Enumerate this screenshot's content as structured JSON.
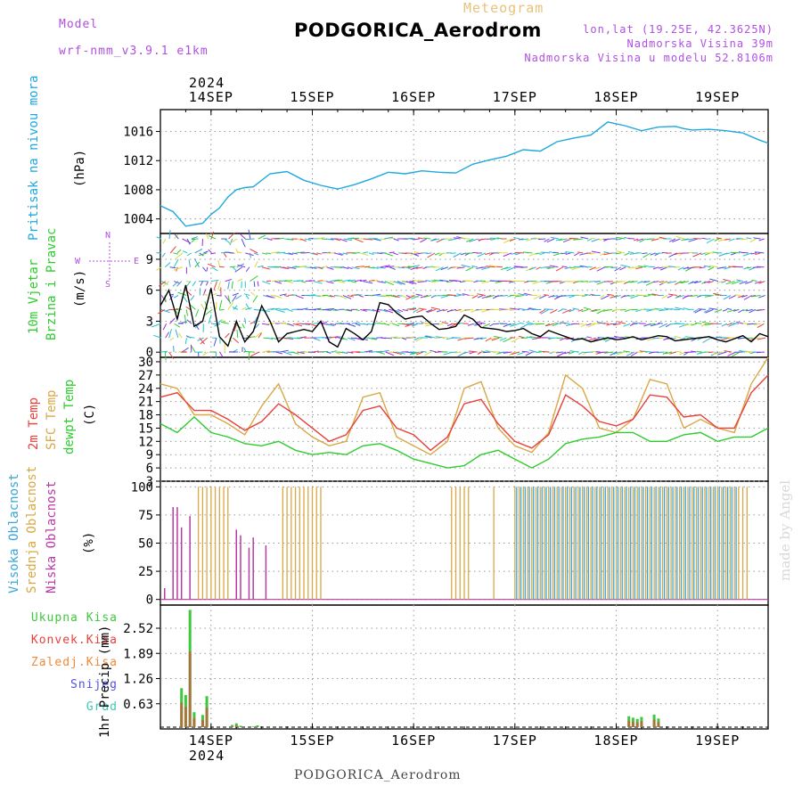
{
  "header": {
    "meteogram": "Meteogram",
    "station": "PODGORICA_Aerodrom",
    "model_label": "Model",
    "model_name": "wrf-nmm_v3.9.1 e1km",
    "lonlat": "lon,lat (19.25E, 42.3625N)",
    "altitude": "Nadmorska Visina 39m",
    "model_altitude": "Nadmorska Visina u modelu 52.8106m",
    "footer": "PODGORICA_Aerodrom",
    "credit": "made by Angel",
    "year_top": "2024",
    "year_bottom": "2024"
  },
  "panels_labels": {
    "pressure": {
      "main": "Pritisak na nivou mora",
      "unit": "(hPa)"
    },
    "wind": {
      "line1": "10m Vjetar",
      "line2": "Brzina i Pravac",
      "unit": "(m/s)",
      "compass_n": "N",
      "compass_e": "E",
      "compass_w": "W",
      "compass_s": "S"
    },
    "temp": {
      "l1": "2m Temp",
      "l2": "SFC Temp",
      "l3": "dewpt Temp",
      "unit": "(C)"
    },
    "cloud": {
      "l1": "Visoka Oblacnost",
      "l2": "Srednja Oblacnost",
      "l3": "Niska Oblacnost",
      "unit": "(%)"
    },
    "precip": {
      "l1": "Ukupna Kisa",
      "l2": "Konvek.Kisa",
      "l3": "Zaledj.Kisa",
      "l4": "Snijeg",
      "l5": "Grad",
      "unit": "1hr Precip (mm)"
    }
  },
  "colors": {
    "pressure": "#1ea8e0",
    "temp2m": "#e8403a",
    "sfc": "#d9a845",
    "dewpt": "#2ecc2e",
    "cloud_high": "#3aa6d8",
    "cloud_mid": "#d9a845",
    "cloud_low": "#b83aa6",
    "precip_total": "#3ec83e",
    "precip_conv": "#e8403a",
    "precip_frz": "#f08a3a",
    "snow": "#5050e0",
    "hail": "#3ec8b0"
  },
  "chart_data": [
    {
      "type": "line",
      "id": "pressure",
      "x_days": [
        "14SEP",
        "15SEP",
        "16SEP",
        "17SEP",
        "18SEP",
        "19SEP"
      ],
      "xlim_hours": [
        -12,
        132
      ],
      "ylim": [
        1002,
        1019
      ],
      "yticks": [
        1004,
        1008,
        1012,
        1016
      ],
      "series": [
        {
          "x": [
            -12,
            -9,
            -6,
            -4,
            -2,
            0,
            2,
            4,
            6,
            8,
            10,
            14,
            18,
            22,
            26,
            30,
            34,
            38,
            42,
            46,
            50,
            54,
            58,
            62,
            66,
            70,
            74,
            78,
            82,
            86,
            90,
            94,
            98,
            102,
            106,
            110,
            112,
            114,
            118,
            122,
            126,
            130,
            132
          ],
          "y": [
            1005.8,
            1005,
            1003,
            1003.2,
            1003.4,
            1004.6,
            1005.5,
            1007,
            1008,
            1008.3,
            1008.4,
            1010.2,
            1010.5,
            1009.3,
            1008.6,
            1008.1,
            1008.7,
            1009.5,
            1010.4,
            1010.2,
            1010.6,
            1010.4,
            1010.3,
            1011.5,
            1012.1,
            1012.6,
            1013.5,
            1013.3,
            1014.6,
            1015.1,
            1015.5,
            1017.3,
            1016.8,
            1016.1,
            1016.6,
            1016.7,
            1016.4,
            1016.2,
            1016.3,
            1016.1,
            1015.8,
            1014.8,
            1014.4
          ]
        }
      ]
    },
    {
      "type": "line",
      "id": "wind",
      "ylim": [
        -0.5,
        11.5
      ],
      "yticks": [
        0,
        3,
        6,
        9
      ],
      "series": [
        {
          "x": [
            -12,
            -10,
            -8,
            -6,
            -4,
            -2,
            0,
            2,
            4,
            6,
            8,
            10,
            12,
            14,
            16,
            18,
            20,
            22,
            24,
            26,
            28,
            30,
            32,
            34,
            36,
            38,
            40,
            42,
            44,
            46,
            48,
            50,
            52,
            54,
            56,
            58,
            60,
            62,
            64,
            66,
            68,
            70,
            72,
            74,
            76,
            78,
            80,
            82,
            84,
            86,
            88,
            90,
            92,
            94,
            96,
            98,
            100,
            102,
            104,
            106,
            108,
            110,
            112,
            114,
            116,
            118,
            120,
            122,
            124,
            126,
            128,
            130,
            132
          ],
          "y": [
            4.5,
            6,
            3.2,
            6.5,
            2.5,
            3,
            6.2,
            1.5,
            0.6,
            3,
            1,
            2,
            4.5,
            3,
            1,
            1.8,
            2,
            2.2,
            2,
            3,
            1,
            0.5,
            2.3,
            1.8,
            1.2,
            2,
            4.8,
            4.6,
            3.8,
            3.2,
            3.4,
            3.5,
            2.8,
            2.2,
            2.3,
            2.5,
            3.6,
            3.2,
            2.4,
            2.3,
            2.2,
            2.0,
            2.1,
            2.3,
            1.8,
            1.5,
            2.1,
            1.8,
            1.5,
            1.2,
            1.3,
            1.0,
            1.2,
            1.4,
            1.2,
            1.3,
            1.5,
            1.2,
            1.4,
            1.6,
            1.5,
            1.1,
            1.2,
            1.3,
            1.4,
            1.5,
            1.2,
            1.0,
            1.3,
            1.6,
            1.0,
            1.8,
            1.5
          ]
        }
      ]
    },
    {
      "type": "line",
      "id": "temperature",
      "ylim": [
        3,
        31
      ],
      "yticks": [
        3,
        6,
        9,
        12,
        15,
        18,
        21,
        24,
        27,
        30
      ],
      "series": [
        {
          "x": [
            -12,
            -8,
            -4,
            0,
            4,
            8,
            12,
            16,
            20,
            24,
            28,
            32,
            36,
            40,
            44,
            48,
            52,
            56,
            60,
            64,
            68,
            72,
            76,
            80,
            84,
            88,
            92,
            96,
            100,
            104,
            108,
            112,
            116,
            120,
            124,
            128,
            132
          ],
          "y": [
            22,
            23,
            19,
            19,
            17,
            14.5,
            16.5,
            20.5,
            18,
            15,
            12,
            13.5,
            19,
            20,
            15,
            13.5,
            10,
            13,
            20.5,
            21.5,
            16,
            12,
            10.5,
            13.5,
            22.5,
            20,
            16.5,
            15.5,
            17,
            22.5,
            22,
            17.5,
            18,
            15,
            15,
            23,
            27
          ]
        },
        {
          "x": [
            -12,
            -8,
            -4,
            0,
            4,
            8,
            12,
            16,
            20,
            24,
            28,
            32,
            36,
            40,
            44,
            48,
            52,
            56,
            60,
            64,
            68,
            72,
            76,
            80,
            84,
            88,
            92,
            96,
            100,
            104,
            108,
            112,
            116,
            120,
            124,
            128,
            132
          ],
          "y": [
            25,
            24,
            18,
            18,
            16,
            13.5,
            20,
            25,
            16,
            13,
            11,
            12,
            22,
            23,
            13,
            11,
            9,
            12,
            24,
            25.5,
            15,
            11,
            9.5,
            14,
            27,
            24,
            15,
            14,
            17,
            26,
            25,
            15,
            17,
            15,
            14,
            25,
            31
          ]
        },
        {
          "x": [
            -12,
            -8,
            -4,
            0,
            4,
            8,
            12,
            16,
            20,
            24,
            28,
            32,
            36,
            40,
            44,
            48,
            52,
            56,
            60,
            64,
            68,
            72,
            76,
            80,
            84,
            88,
            92,
            96,
            100,
            104,
            108,
            112,
            116,
            120,
            124,
            128,
            132
          ],
          "y": [
            16,
            14,
            17.5,
            14,
            13,
            11.5,
            11,
            12,
            10,
            9,
            9.5,
            9,
            11,
            11.5,
            10,
            8,
            7,
            6,
            6.5,
            9,
            10,
            8,
            6,
            8,
            11.5,
            12.5,
            13,
            14,
            14,
            12,
            12,
            13.5,
            14,
            12,
            13,
            13,
            15
          ]
        }
      ]
    },
    {
      "type": "bar",
      "id": "cloud",
      "ylim": [
        -5,
        105
      ],
      "yticks": [
        0,
        25,
        50,
        75,
        100
      ],
      "low_bars": [
        [
          -11,
          10
        ],
        [
          -9,
          82
        ],
        [
          -8,
          82
        ],
        [
          -7,
          64
        ],
        [
          -5,
          74
        ],
        [
          6,
          62
        ],
        [
          7,
          57
        ],
        [
          9,
          46
        ],
        [
          10,
          55
        ],
        [
          13,
          48
        ]
      ],
      "mid_blocks": [
        [
          -3,
          4
        ],
        [
          17,
          26
        ],
        [
          57,
          61
        ],
        [
          67,
          67
        ],
        [
          72,
          127
        ]
      ],
      "high_blocks": [
        [
          72,
          124
        ]
      ]
    },
    {
      "type": "bar",
      "id": "precip",
      "ylim": [
        0,
        3.1
      ],
      "yticks": [
        0.63,
        1.26,
        1.89,
        2.52
      ],
      "bars": [
        [
          -7,
          1.02
        ],
        [
          -6,
          0.85
        ],
        [
          -5,
          2.98
        ],
        [
          -4,
          0.42
        ],
        [
          -2,
          0.35
        ],
        [
          -1,
          0.82
        ],
        [
          5,
          0.1
        ],
        [
          6,
          0.14
        ],
        [
          7,
          0.08
        ],
        [
          10,
          0.06
        ],
        [
          11,
          0.09
        ],
        [
          99,
          0.32
        ],
        [
          100,
          0.28
        ],
        [
          101,
          0.25
        ],
        [
          102,
          0.3
        ],
        [
          105,
          0.36
        ],
        [
          106,
          0.26
        ]
      ]
    }
  ]
}
